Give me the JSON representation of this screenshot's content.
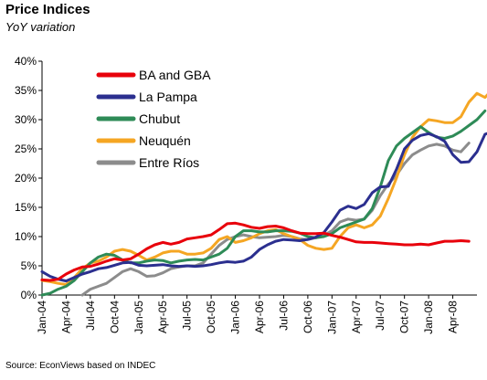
{
  "chart_data": {
    "type": "line",
    "title": "Price Indices",
    "subtitle": "YoY variation",
    "source": "Source: EconViews based on INDEC",
    "ylim": [
      0,
      40
    ],
    "yticks": [
      0,
      5,
      10,
      15,
      20,
      25,
      30,
      35,
      40
    ],
    "ytick_labels": [
      "0%",
      "5%",
      "10%",
      "15%",
      "20%",
      "25%",
      "30%",
      "35%",
      "40%"
    ],
    "xlim": [
      0,
      54
    ],
    "xticks": [
      0,
      3,
      6,
      9,
      12,
      15,
      18,
      21,
      24,
      27,
      30,
      33,
      36,
      39,
      42,
      45,
      48,
      51
    ],
    "xtick_labels": [
      "Jan-04",
      "Apr-04",
      "Jul-04",
      "Oct-04",
      "Jan-05",
      "Apr-05",
      "Jul-05",
      "Oct-05",
      "Jan-06",
      "Apr-06",
      "Jul-06",
      "Oct-06",
      "Jan-07",
      "Apr-07",
      "Jul-07",
      "Oct-07",
      "Jan-08",
      "Apr-08"
    ],
    "grid": false,
    "legend_position": "top-left",
    "series": [
      {
        "name": "BA and GBA",
        "color": "#e8000b",
        "values": [
          2.6,
          2.5,
          2.7,
          3.6,
          4.3,
          4.8,
          4.9,
          5.3,
          5.8,
          6.2,
          6.0,
          6.2,
          7.0,
          7.9,
          8.6,
          9.0,
          8.7,
          9.0,
          9.6,
          9.8,
          10.0,
          10.3,
          11.2,
          12.2,
          12.3,
          12.0,
          11.6,
          11.4,
          11.7,
          11.8,
          11.5,
          11.0,
          10.6,
          10.5,
          10.5,
          10.6,
          10.2,
          9.9,
          9.5,
          9.1,
          9.0,
          9.0,
          8.9,
          8.8,
          8.7,
          8.6,
          8.6,
          8.7,
          8.6,
          8.9,
          9.2,
          9.2,
          9.3,
          9.2
        ],
        "x_start": 0
      },
      {
        "name": "La Pampa",
        "color": "#2b2f8f",
        "values": [
          4.0,
          3.2,
          2.7,
          2.4,
          3.0,
          3.6,
          4.0,
          4.5,
          4.7,
          5.1,
          5.5,
          5.6,
          5.1,
          5.0,
          5.1,
          5.2,
          5.0,
          4.9,
          5.0,
          4.9,
          5.0,
          5.2,
          5.5,
          5.7,
          5.6,
          5.8,
          6.5,
          7.8,
          8.6,
          9.2,
          9.5,
          9.4,
          9.3,
          9.5,
          9.9,
          10.7,
          12.5,
          14.5,
          15.2,
          14.8,
          15.5,
          17.5,
          18.5,
          18.6,
          21.5,
          25.0,
          26.5,
          27.3,
          27.6,
          27.1,
          26.3,
          24.0,
          22.7,
          22.8,
          24.5,
          27.5,
          28.0,
          26.2,
          26.4
        ],
        "x_start": 0
      },
      {
        "name": "Chubut",
        "color": "#2e8b57",
        "values": [
          0.0,
          0.3,
          1.0,
          1.5,
          2.5,
          4.0,
          5.5,
          6.5,
          7.0,
          6.8,
          6.0,
          5.5,
          5.5,
          5.8,
          6.0,
          5.9,
          5.5,
          5.8,
          6.0,
          6.1,
          6.0,
          6.5,
          7.0,
          8.0,
          10.0,
          11.0,
          11.0,
          10.8,
          10.8,
          11.0,
          11.0,
          10.9,
          10.6,
          10.0,
          9.8,
          10.0,
          10.5,
          11.5,
          12.0,
          12.5,
          13.0,
          14.8,
          18.5,
          23.0,
          25.5,
          26.8,
          27.8,
          28.8,
          27.8,
          27.0,
          26.8,
          27.2,
          28.0,
          29.0,
          30.0,
          31.5
        ],
        "x_start": 0
      },
      {
        "name": "Neuquén",
        "color": "#f5a623",
        "values": [
          2.5,
          2.3,
          2.0,
          1.8,
          3.0,
          4.5,
          5.5,
          5.8,
          6.5,
          7.5,
          7.8,
          7.5,
          6.8,
          6.0,
          6.5,
          7.2,
          7.5,
          7.5,
          7.0,
          7.0,
          7.2,
          8.0,
          9.5,
          10.0,
          9.0,
          9.3,
          9.8,
          10.5,
          11.0,
          11.2,
          10.5,
          10.0,
          9.5,
          8.5,
          8.0,
          7.8,
          8.0,
          10.0,
          11.5,
          12.0,
          11.5,
          12.0,
          13.5,
          16.5,
          20.0,
          24.0,
          27.0,
          28.8,
          30.0,
          29.8,
          29.5,
          29.5,
          30.5,
          33.0,
          34.5,
          33.8,
          35.3
        ],
        "x_start": 0
      },
      {
        "name": "Entre Ríos",
        "color": "#8c8c8c",
        "values": [
          null,
          null,
          null,
          null,
          null,
          0.0,
          1.0,
          1.5,
          2.0,
          3.0,
          4.0,
          4.5,
          4.0,
          3.2,
          3.3,
          3.8,
          4.5,
          4.8,
          5.0,
          5.0,
          5.5,
          7.0,
          8.5,
          9.5,
          10.0,
          10.3,
          10.0,
          9.8,
          9.9,
          10.0,
          10.2,
          10.0,
          9.6,
          9.5,
          9.8,
          10.2,
          11.0,
          12.5,
          13.0,
          12.8,
          13.0,
          14.5,
          17.0,
          19.0,
          20.5,
          22.5,
          24.0,
          24.8,
          25.5,
          25.8,
          25.5,
          24.8,
          24.5,
          26.0
        ],
        "x_start": 0
      }
    ]
  }
}
